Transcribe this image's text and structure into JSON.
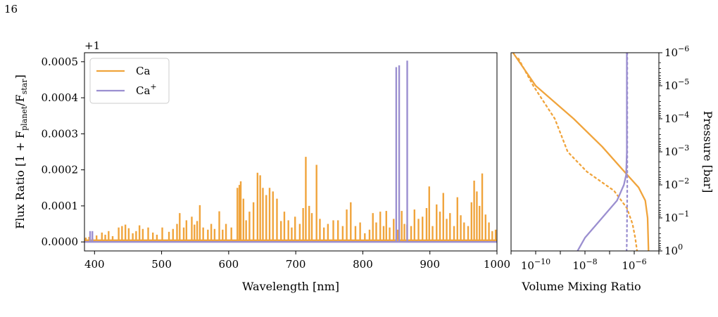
{
  "page": {
    "number": "16"
  },
  "chart_data": [
    {
      "type": "line",
      "panel": "spectrum",
      "xlabel": "Wavelength [nm]",
      "ylabel": "Flux Ratio [1 + F_planet/F_star]",
      "ylabel_parts": {
        "main": "Flux Ratio [1 + F",
        "sub1": "planet",
        "mid": "/F",
        "sub2": "star",
        "end": "]"
      },
      "offset_label": "+1",
      "xlim": [
        385,
        1000
      ],
      "ylim": [
        -2.5e-05,
        0.000525
      ],
      "xticks": [
        400,
        500,
        600,
        700,
        800,
        900,
        1000
      ],
      "yticks": [
        0.0,
        0.0001,
        0.0002,
        0.0003,
        0.0004,
        0.0005
      ],
      "ytick_labels": [
        "0.0000",
        "0.0001",
        "0.0002",
        "0.0003",
        "0.0004",
        "0.0005"
      ],
      "legend": {
        "placement": "top-left",
        "entries": [
          {
            "label": "Ca",
            "sup": "",
            "color": "#f0a43c"
          },
          {
            "label": "Ca",
            "sup": "+",
            "color": "#9b8fd0"
          }
        ]
      },
      "series": [
        {
          "name": "Ca",
          "color": "#f0a43c",
          "baseline": 4e-06,
          "peaks": [
            [
              387,
              1.2e-05
            ],
            [
              392,
              1.4e-05
            ],
            [
              397,
              1e-05
            ],
            [
              403,
              1.8e-05
            ],
            [
              411,
              2.6e-05
            ],
            [
              416,
              2e-05
            ],
            [
              421,
              3e-05
            ],
            [
              427,
              1.6e-05
            ],
            [
              436,
              4e-05
            ],
            [
              441,
              4.4e-05
            ],
            [
              446,
              4.8e-05
            ],
            [
              451,
              3.8e-05
            ],
            [
              457,
              2.4e-05
            ],
            [
              462,
              3e-05
            ],
            [
              467,
              4.6e-05
            ],
            [
              472,
              3.6e-05
            ],
            [
              480,
              4e-05
            ],
            [
              487,
              2.6e-05
            ],
            [
              493,
              2e-05
            ],
            [
              501,
              4e-05
            ],
            [
              511,
              2.8e-05
            ],
            [
              517,
              3.6e-05
            ],
            [
              523,
              5e-05
            ],
            [
              527,
              8e-05
            ],
            [
              533,
              4e-05
            ],
            [
              537,
              6e-05
            ],
            [
              545,
              7e-05
            ],
            [
              549,
              4.8e-05
            ],
            [
              553,
              5.8e-05
            ],
            [
              557,
              0.000102
            ],
            [
              562,
              4e-05
            ],
            [
              569,
              3.4e-05
            ],
            [
              574,
              5e-05
            ],
            [
              579,
              3.6e-05
            ],
            [
              586,
              8.5e-05
            ],
            [
              591,
              3.4e-05
            ],
            [
              596,
              5e-05
            ],
            [
              604,
              4e-05
            ],
            [
              613,
              0.00015
            ],
            [
              616,
              0.000158
            ],
            [
              618,
              0.000168
            ],
            [
              622,
              0.00012
            ],
            [
              626,
              6e-05
            ],
            [
              631,
              8.4e-05
            ],
            [
              637,
              0.00011
            ],
            [
              643,
              0.000192
            ],
            [
              647,
              0.000185
            ],
            [
              651,
              0.00015
            ],
            [
              656,
              0.00013
            ],
            [
              661,
              0.00015
            ],
            [
              666,
              0.00014
            ],
            [
              672,
              0.00012
            ],
            [
              678,
              5.8e-05
            ],
            [
              683,
              8.4e-05
            ],
            [
              689,
              6e-05
            ],
            [
              694,
              4e-05
            ],
            [
              699,
              7e-05
            ],
            [
              706,
              5e-05
            ],
            [
              711,
              9.4e-05
            ],
            [
              715,
              0.000236
            ],
            [
              720,
              0.0001
            ],
            [
              724,
              8e-05
            ],
            [
              731,
              0.000214
            ],
            [
              736,
              6.4e-05
            ],
            [
              742,
              4e-05
            ],
            [
              748,
              5e-05
            ],
            [
              756,
              6e-05
            ],
            [
              763,
              6e-05
            ],
            [
              770,
              4.4e-05
            ],
            [
              776,
              9e-05
            ],
            [
              782,
              0.00011
            ],
            [
              789,
              4.4e-05
            ],
            [
              796,
              5.4e-05
            ],
            [
              803,
              2.4e-05
            ],
            [
              810,
              3.4e-05
            ],
            [
              815,
              8e-05
            ],
            [
              820,
              5.4e-05
            ],
            [
              826,
              8.4e-05
            ],
            [
              831,
              4.4e-05
            ],
            [
              835,
              8.6e-05
            ],
            [
              840,
              4e-05
            ],
            [
              846,
              6.4e-05
            ],
            [
              852,
              3.4e-05
            ],
            [
              858,
              8.6e-05
            ],
            [
              862,
              5e-05
            ],
            [
              866,
              4.8e-05
            ],
            [
              872,
              4.4e-05
            ],
            [
              877,
              9e-05
            ],
            [
              883,
              6.4e-05
            ],
            [
              889,
              7e-05
            ],
            [
              895,
              9.4e-05
            ],
            [
              899,
              0.000154
            ],
            [
              904,
              4.4e-05
            ],
            [
              910,
              0.000104
            ],
            [
              915,
              8.4e-05
            ],
            [
              920,
              0.000136
            ],
            [
              925,
              6.4e-05
            ],
            [
              930,
              8e-05
            ],
            [
              936,
              4.4e-05
            ],
            [
              941,
              0.000124
            ],
            [
              946,
              7.4e-05
            ],
            [
              951,
              5.4e-05
            ],
            [
              957,
              4.4e-05
            ],
            [
              962,
              0.00011
            ],
            [
              966,
              0.00017
            ],
            [
              970,
              0.00014
            ],
            [
              974,
              0.0001
            ],
            [
              978,
              0.00019
            ],
            [
              983,
              7.6e-05
            ],
            [
              988,
              5.4e-05
            ],
            [
              993,
              3e-05
            ],
            [
              998,
              3.4e-05
            ]
          ]
        },
        {
          "name": "Ca+",
          "color": "#9b8fd0",
          "baseline": 0.0,
          "peaks": [
            [
              393.4,
              3e-05
            ],
            [
              396.8,
              3e-05
            ],
            [
              849.8,
              0.000485
            ],
            [
              854.2,
              0.00049
            ],
            [
              866.2,
              0.000503
            ]
          ]
        }
      ]
    },
    {
      "type": "line",
      "panel": "profile",
      "xlabel": "Volume Mixing Ratio",
      "ylabel": "Pressure [bar]",
      "xscale": "log",
      "yscale": "log",
      "y_inverted": true,
      "xlim": [
        1e-11,
        1e-05
      ],
      "ylim": [
        1e-06,
        1.0
      ],
      "xticks": [
        {
          "base": "10",
          "exp": "−10",
          "value": 1e-10
        },
        {
          "base": "10",
          "exp": "−8",
          "value": 1e-08
        },
        {
          "base": "10",
          "exp": "−6",
          "value": 1e-06
        }
      ],
      "yticks": [
        {
          "base": "10",
          "exp": "−6",
          "value": 1e-06
        },
        {
          "base": "10",
          "exp": "−5",
          "value": 1e-05
        },
        {
          "base": "10",
          "exp": "−4",
          "value": 0.0001
        },
        {
          "base": "10",
          "exp": "−3",
          "value": 0.001
        },
        {
          "base": "10",
          "exp": "−2",
          "value": 0.01
        },
        {
          "base": "10",
          "exp": "−1",
          "value": 0.1
        },
        {
          "base": "10",
          "exp": "0",
          "value": 1.0
        }
      ],
      "series": [
        {
          "name": "Ca",
          "style": "solid",
          "color": "#f0a43c",
          "x": [
            1.2e-11,
            1e-10,
            3.5e-09,
            5e-08,
            4e-07,
            1.5e-06,
            2.8e-06,
            3.5e-06,
            3.8e-06
          ],
          "y": [
            1e-06,
            1e-05,
            0.0001,
            0.0007,
            0.004,
            0.012,
            0.03,
            0.1,
            1.0
          ]
        },
        {
          "name": "Ca",
          "style": "dotted",
          "color": "#f0a43c",
          "x": [
            2e-11,
            8e-11,
            6e-10,
            2e-09,
            1.2e-08,
            1.5e-07,
            5e-07,
            8.5e-07,
            1.1e-06,
            1.3e-06
          ],
          "y": [
            1.5e-06,
            1e-05,
            0.0001,
            0.001,
            0.004,
            0.015,
            0.05,
            0.15,
            0.4,
            1.0
          ]
        },
        {
          "name": "Ca+",
          "style": "solid",
          "color": "#9b8fd0",
          "x": [
            5e-07,
            5e-07,
            5e-07,
            4.7e-07,
            3.8e-07,
            2e-07,
            4e-08,
            1e-08,
            5e-09
          ],
          "y": [
            1e-06,
            0.0001,
            0.001,
            0.005,
            0.01,
            0.03,
            0.12,
            0.4,
            1.0
          ]
        },
        {
          "name": "Ca+",
          "style": "dotted",
          "color": "#9b8fd0",
          "x": [
            5.2e-07,
            5.2e-07,
            5.2e-07,
            5.1e-07,
            5e-07,
            4.9e-07
          ],
          "y": [
            1e-06,
            0.0001,
            0.01,
            0.1,
            0.5,
            1.0
          ]
        }
      ]
    }
  ]
}
